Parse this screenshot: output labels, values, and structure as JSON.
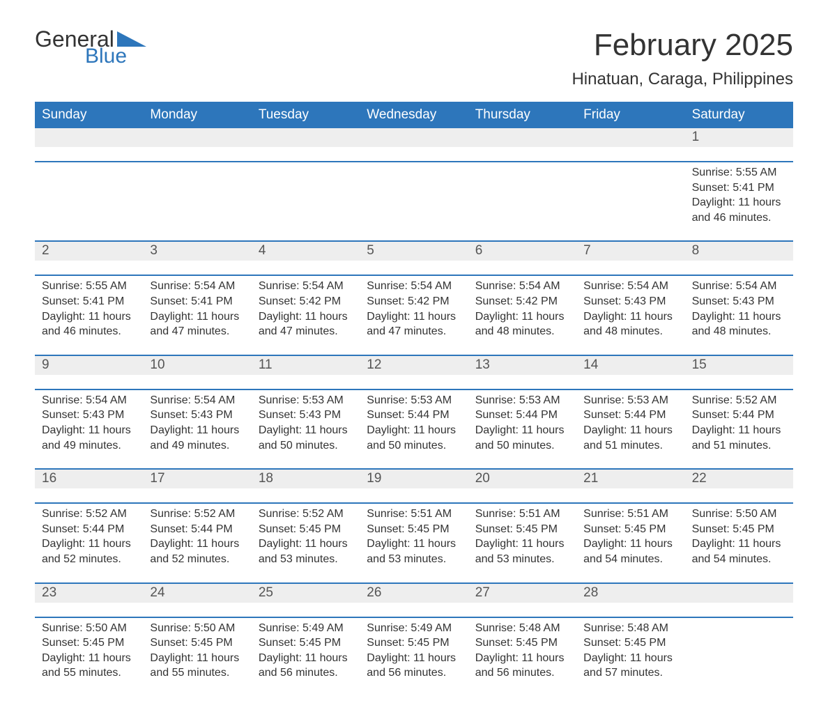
{
  "brand": {
    "text1": "General",
    "text2": "Blue",
    "accent_color": "#2d76bb"
  },
  "title": "February 2025",
  "location": "Hinatuan, Caraga, Philippines",
  "colors": {
    "header_bg": "#2d76bb",
    "header_text": "#ffffff",
    "daynum_bg": "#eeeeee",
    "text": "#333333",
    "page_bg": "#ffffff"
  },
  "layout": {
    "columns": 7,
    "first_day_column_index": 6
  },
  "day_labels": [
    "Sunday",
    "Monday",
    "Tuesday",
    "Wednesday",
    "Thursday",
    "Friday",
    "Saturday"
  ],
  "weeks": [
    [
      null,
      null,
      null,
      null,
      null,
      null,
      {
        "n": "1",
        "sunrise": "Sunrise: 5:55 AM",
        "sunset": "Sunset: 5:41 PM",
        "daylight": "Daylight: 11 hours and 46 minutes."
      }
    ],
    [
      {
        "n": "2",
        "sunrise": "Sunrise: 5:55 AM",
        "sunset": "Sunset: 5:41 PM",
        "daylight": "Daylight: 11 hours and 46 minutes."
      },
      {
        "n": "3",
        "sunrise": "Sunrise: 5:54 AM",
        "sunset": "Sunset: 5:41 PM",
        "daylight": "Daylight: 11 hours and 47 minutes."
      },
      {
        "n": "4",
        "sunrise": "Sunrise: 5:54 AM",
        "sunset": "Sunset: 5:42 PM",
        "daylight": "Daylight: 11 hours and 47 minutes."
      },
      {
        "n": "5",
        "sunrise": "Sunrise: 5:54 AM",
        "sunset": "Sunset: 5:42 PM",
        "daylight": "Daylight: 11 hours and 47 minutes."
      },
      {
        "n": "6",
        "sunrise": "Sunrise: 5:54 AM",
        "sunset": "Sunset: 5:42 PM",
        "daylight": "Daylight: 11 hours and 48 minutes."
      },
      {
        "n": "7",
        "sunrise": "Sunrise: 5:54 AM",
        "sunset": "Sunset: 5:43 PM",
        "daylight": "Daylight: 11 hours and 48 minutes."
      },
      {
        "n": "8",
        "sunrise": "Sunrise: 5:54 AM",
        "sunset": "Sunset: 5:43 PM",
        "daylight": "Daylight: 11 hours and 48 minutes."
      }
    ],
    [
      {
        "n": "9",
        "sunrise": "Sunrise: 5:54 AM",
        "sunset": "Sunset: 5:43 PM",
        "daylight": "Daylight: 11 hours and 49 minutes."
      },
      {
        "n": "10",
        "sunrise": "Sunrise: 5:54 AM",
        "sunset": "Sunset: 5:43 PM",
        "daylight": "Daylight: 11 hours and 49 minutes."
      },
      {
        "n": "11",
        "sunrise": "Sunrise: 5:53 AM",
        "sunset": "Sunset: 5:43 PM",
        "daylight": "Daylight: 11 hours and 50 minutes."
      },
      {
        "n": "12",
        "sunrise": "Sunrise: 5:53 AM",
        "sunset": "Sunset: 5:44 PM",
        "daylight": "Daylight: 11 hours and 50 minutes."
      },
      {
        "n": "13",
        "sunrise": "Sunrise: 5:53 AM",
        "sunset": "Sunset: 5:44 PM",
        "daylight": "Daylight: 11 hours and 50 minutes."
      },
      {
        "n": "14",
        "sunrise": "Sunrise: 5:53 AM",
        "sunset": "Sunset: 5:44 PM",
        "daylight": "Daylight: 11 hours and 51 minutes."
      },
      {
        "n": "15",
        "sunrise": "Sunrise: 5:52 AM",
        "sunset": "Sunset: 5:44 PM",
        "daylight": "Daylight: 11 hours and 51 minutes."
      }
    ],
    [
      {
        "n": "16",
        "sunrise": "Sunrise: 5:52 AM",
        "sunset": "Sunset: 5:44 PM",
        "daylight": "Daylight: 11 hours and 52 minutes."
      },
      {
        "n": "17",
        "sunrise": "Sunrise: 5:52 AM",
        "sunset": "Sunset: 5:44 PM",
        "daylight": "Daylight: 11 hours and 52 minutes."
      },
      {
        "n": "18",
        "sunrise": "Sunrise: 5:52 AM",
        "sunset": "Sunset: 5:45 PM",
        "daylight": "Daylight: 11 hours and 53 minutes."
      },
      {
        "n": "19",
        "sunrise": "Sunrise: 5:51 AM",
        "sunset": "Sunset: 5:45 PM",
        "daylight": "Daylight: 11 hours and 53 minutes."
      },
      {
        "n": "20",
        "sunrise": "Sunrise: 5:51 AM",
        "sunset": "Sunset: 5:45 PM",
        "daylight": "Daylight: 11 hours and 53 minutes."
      },
      {
        "n": "21",
        "sunrise": "Sunrise: 5:51 AM",
        "sunset": "Sunset: 5:45 PM",
        "daylight": "Daylight: 11 hours and 54 minutes."
      },
      {
        "n": "22",
        "sunrise": "Sunrise: 5:50 AM",
        "sunset": "Sunset: 5:45 PM",
        "daylight": "Daylight: 11 hours and 54 minutes."
      }
    ],
    [
      {
        "n": "23",
        "sunrise": "Sunrise: 5:50 AM",
        "sunset": "Sunset: 5:45 PM",
        "daylight": "Daylight: 11 hours and 55 minutes."
      },
      {
        "n": "24",
        "sunrise": "Sunrise: 5:50 AM",
        "sunset": "Sunset: 5:45 PM",
        "daylight": "Daylight: 11 hours and 55 minutes."
      },
      {
        "n": "25",
        "sunrise": "Sunrise: 5:49 AM",
        "sunset": "Sunset: 5:45 PM",
        "daylight": "Daylight: 11 hours and 56 minutes."
      },
      {
        "n": "26",
        "sunrise": "Sunrise: 5:49 AM",
        "sunset": "Sunset: 5:45 PM",
        "daylight": "Daylight: 11 hours and 56 minutes."
      },
      {
        "n": "27",
        "sunrise": "Sunrise: 5:48 AM",
        "sunset": "Sunset: 5:45 PM",
        "daylight": "Daylight: 11 hours and 56 minutes."
      },
      {
        "n": "28",
        "sunrise": "Sunrise: 5:48 AM",
        "sunset": "Sunset: 5:45 PM",
        "daylight": "Daylight: 11 hours and 57 minutes."
      },
      null
    ]
  ]
}
